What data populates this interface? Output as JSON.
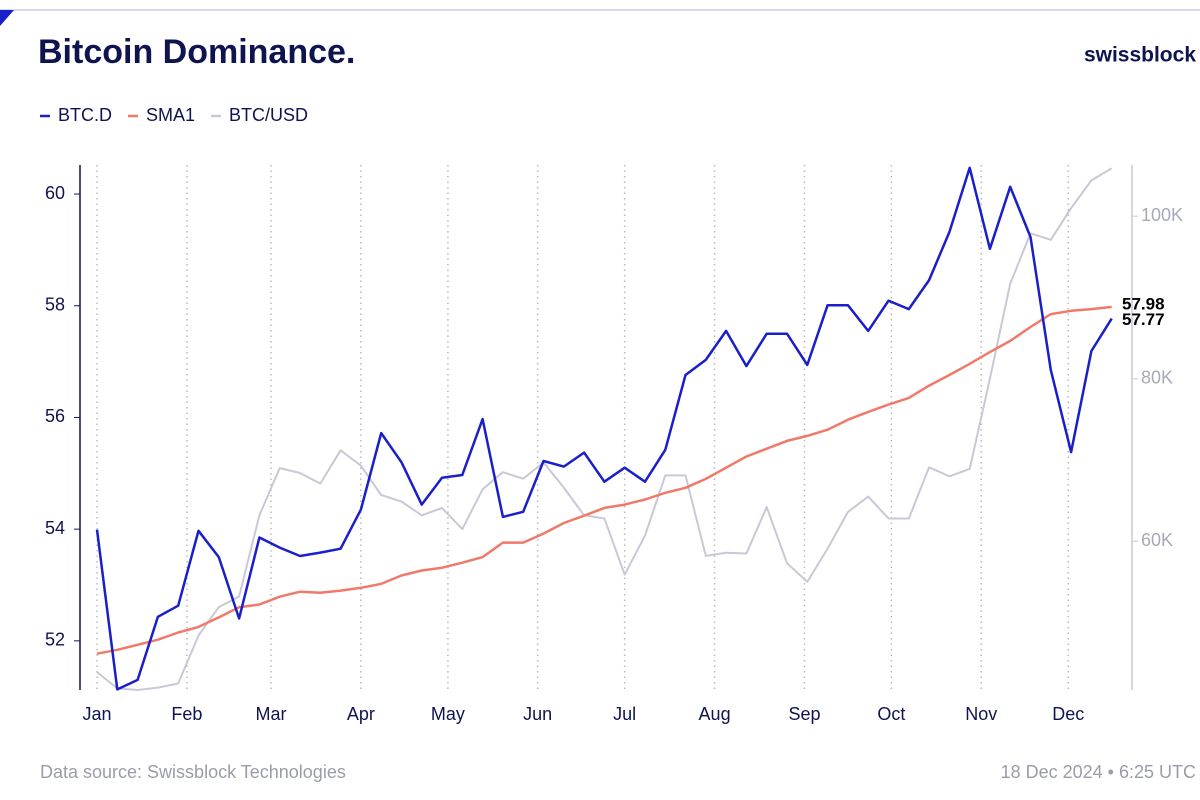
{
  "chart_data": {
    "type": "line",
    "title": "Bitcoin Dominance.",
    "brand": "swissblock",
    "source": "Data source: Swissblock Technologies",
    "timestamp": "18 Dec 2024 • 6:25 UTC",
    "x": [
      0,
      1,
      2,
      3,
      4,
      5,
      6,
      7,
      8,
      9,
      10,
      11,
      12,
      13,
      14,
      15,
      16,
      17,
      18,
      19,
      20,
      21,
      22,
      23,
      24,
      25,
      26,
      27,
      28,
      29,
      30,
      31,
      32,
      33,
      34,
      35,
      36,
      37,
      38,
      39,
      40,
      41,
      42,
      43,
      44,
      45,
      46,
      47,
      48,
      49,
      50
    ],
    "xlim": [
      -0.84,
      51
    ],
    "xticks": [
      {
        "value": 0,
        "label": "Jan"
      },
      {
        "value": 4.43,
        "label": "Feb"
      },
      {
        "value": 8.57,
        "label": "Mar"
      },
      {
        "value": 13,
        "label": "Apr"
      },
      {
        "value": 17.29,
        "label": "May"
      },
      {
        "value": 21.71,
        "label": "Jun"
      },
      {
        "value": 26,
        "label": "Jul"
      },
      {
        "value": 30.43,
        "label": "Aug"
      },
      {
        "value": 34.86,
        "label": "Sep"
      },
      {
        "value": 39.14,
        "label": "Oct"
      },
      {
        "value": 43.57,
        "label": "Nov"
      },
      {
        "value": 47.86,
        "label": "Dec"
      }
    ],
    "xgrid": true,
    "ylim": [
      51.12,
      60.52
    ],
    "yticks": [
      52,
      54,
      56,
      58,
      60
    ],
    "y2lim": [
      41700,
      106300
    ],
    "y2ticks": [
      {
        "value": 60000,
        "label": "60K"
      },
      {
        "value": 80000,
        "label": "80K"
      },
      {
        "value": 100000,
        "label": "100K"
      }
    ],
    "series": [
      {
        "name": "BTC.D",
        "color": "#1a1fc8",
        "values": [
          53.99,
          51.13,
          51.3,
          52.43,
          52.63,
          53.97,
          53.5,
          52.4,
          53.85,
          53.67,
          53.52,
          53.58,
          53.65,
          54.35,
          55.72,
          55.2,
          54.44,
          54.92,
          54.97,
          55.97,
          54.22,
          54.31,
          55.22,
          55.12,
          55.37,
          54.85,
          55.1,
          54.85,
          55.42,
          56.76,
          57.03,
          57.55,
          56.92,
          57.5,
          57.5,
          56.94,
          58.01,
          58.01,
          57.55,
          58.09,
          57.94,
          58.46,
          59.32,
          60.47,
          59.02,
          60.13,
          59.23,
          56.85,
          55.38,
          57.19,
          57.77
        ]
      },
      {
        "name": "SMA1",
        "color": "#f07a6a",
        "values": [
          51.77,
          51.84,
          51.93,
          52.02,
          52.15,
          52.25,
          52.42,
          52.6,
          52.65,
          52.79,
          52.88,
          52.86,
          52.9,
          52.95,
          53.02,
          53.17,
          53.26,
          53.31,
          53.4,
          53.5,
          53.76,
          53.76,
          53.92,
          54.11,
          54.24,
          54.38,
          54.44,
          54.53,
          54.65,
          54.74,
          54.9,
          55.1,
          55.3,
          55.44,
          55.58,
          55.67,
          55.78,
          55.96,
          56.1,
          56.23,
          56.35,
          56.57,
          56.76,
          56.96,
          57.17,
          57.37,
          57.62,
          57.85,
          57.91,
          57.94,
          57.98
        ]
      },
      {
        "name": "BTC/USD",
        "color": "#c8c9d6",
        "axis": "y2",
        "values": [
          43900,
          41900,
          41700,
          42000,
          42500,
          48400,
          51900,
          53200,
          63200,
          69000,
          68400,
          67100,
          71200,
          69300,
          65700,
          64900,
          63200,
          64100,
          61500,
          66400,
          68500,
          67700,
          69700,
          66600,
          63200,
          62800,
          55900,
          60700,
          68100,
          68100,
          58200,
          58600,
          58500,
          64200,
          57300,
          55000,
          59100,
          63600,
          65500,
          62800,
          62800,
          69100,
          68000,
          68900,
          80000,
          91700,
          97900,
          97100,
          101000,
          104400,
          105900
        ]
      }
    ]
  }
}
